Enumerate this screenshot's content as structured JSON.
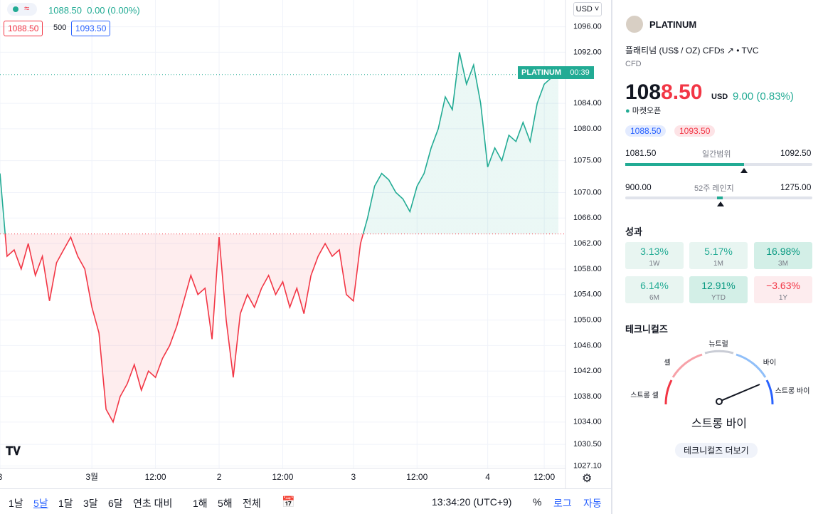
{
  "chart_header": {
    "last": "1088.50",
    "change": "0.00 (0.00%)",
    "bid": "1088.50",
    "spread": "500",
    "ask": "1093.50"
  },
  "currency": "USD",
  "price_badge": {
    "symbol": "PLATINUM",
    "countdown": "00:39"
  },
  "chart_data": {
    "type": "line",
    "categories": [
      "3",
      null,
      null,
      null,
      null,
      null,
      null,
      null,
      null,
      null,
      null,
      null,
      null,
      "3월",
      null,
      null,
      null,
      null,
      null,
      null,
      null,
      null,
      "12:00",
      null,
      null,
      null,
      null,
      null,
      null,
      null,
      null,
      "2",
      null,
      null,
      null,
      null,
      null,
      null,
      null,
      null,
      "12:00",
      null,
      null,
      null,
      null,
      null,
      null,
      null,
      null,
      null,
      "3",
      null,
      null,
      null,
      null,
      null,
      null,
      null,
      null,
      "12:00",
      null,
      null,
      null,
      null,
      null,
      null,
      null,
      null,
      null,
      "4",
      null,
      null,
      null,
      null,
      null,
      null,
      null,
      "12:00",
      null,
      null
    ],
    "values": [
      1073,
      1060,
      1061,
      1058,
      1062,
      1057,
      1060,
      1053,
      1059,
      1061,
      1063,
      1060,
      1058,
      1052,
      1048,
      1036,
      1034,
      1038,
      1040,
      1043,
      1039,
      1042,
      1041,
      1044,
      1046,
      1049,
      1053,
      1057,
      1054,
      1055,
      1047,
      1063,
      1050,
      1041,
      1051,
      1054,
      1052,
      1055,
      1057,
      1054,
      1056,
      1052,
      1055,
      1051,
      1057,
      1060,
      1062,
      1060,
      1061,
      1054,
      1053,
      1062,
      1066,
      1071,
      1073,
      1072,
      1070,
      1069,
      1067,
      1071,
      1073,
      1077,
      1080,
      1085,
      1083,
      1092,
      1087,
      1090,
      1084,
      1074,
      1077,
      1075,
      1079,
      1078,
      1081,
      1078,
      1084,
      1087,
      1088,
      1088.5
    ],
    "baseline": 1063.5,
    "last_price_line": 1088.5,
    "color_up": "#22ab94",
    "color_down": "#f23645",
    "ylim": [
      1026.5,
      1100.2
    ],
    "yticks": [
      {
        "value": 1096,
        "label": "1096.00"
      },
      {
        "value": 1092,
        "label": "1092.00"
      },
      {
        "value": 1084,
        "label": "1084.00"
      },
      {
        "value": 1080,
        "label": "1080.00"
      },
      {
        "value": 1075,
        "label": "1075.00"
      },
      {
        "value": 1070,
        "label": "1070.00"
      },
      {
        "value": 1066,
        "label": "1066.00"
      },
      {
        "value": 1062,
        "label": "1062.00"
      },
      {
        "value": 1058,
        "label": "1058.00"
      },
      {
        "value": 1054,
        "label": "1054.00"
      },
      {
        "value": 1050,
        "label": "1050.00"
      },
      {
        "value": 1046,
        "label": "1046.00"
      },
      {
        "value": 1042,
        "label": "1042.00"
      },
      {
        "value": 1038,
        "label": "1038.00"
      },
      {
        "value": 1034,
        "label": "1034.00"
      },
      {
        "value": 1030.5,
        "label": "1030.50"
      },
      {
        "value": 1027.1,
        "label": "1027.10"
      }
    ],
    "grid": true
  },
  "toolbar": {
    "ranges": [
      "1날",
      "5날",
      "1달",
      "3달",
      "6달",
      "연초 대비",
      "1해",
      "5해",
      "전체"
    ],
    "time": "13:34:20 (UTC+9)",
    "options": [
      "%",
      "로그",
      "자동"
    ]
  },
  "panel": {
    "symbol": "PLATINUM",
    "description": "플래티넘 (US$ / OZ) CFDs",
    "exchange": "TVC",
    "kind": "CFD",
    "price_main": "108",
    "price_tail": "8.50",
    "price_currency": "USD",
    "price_change": "9.00 (0.83%)",
    "market_status": "마켓오픈",
    "bid": "1088.50",
    "ask": "1093.50",
    "day_range": {
      "low": "1081.50",
      "label": "일간범위",
      "high": "1092.50"
    },
    "year_range": {
      "low": "900.00",
      "label": "52주 레인지",
      "high": "1275.00"
    },
    "performance_title": "성과",
    "performance": [
      {
        "value": "3.13%",
        "label": "1W"
      },
      {
        "value": "5.17%",
        "label": "1M"
      },
      {
        "value": "16.98%",
        "label": "3M"
      },
      {
        "value": "6.14%",
        "label": "6M"
      },
      {
        "value": "12.91%",
        "label": "YTD"
      },
      {
        "value": "−3.63%",
        "label": "1Y"
      }
    ],
    "technicals_title": "테크니컬즈",
    "gauge": {
      "strong_sell": "스트롱 셀",
      "sell": "셀",
      "neutral": "뉴트럴",
      "buy": "바이",
      "strong_buy": "스트롱 바이",
      "result": "스트롱 바이"
    },
    "more": "테크니컬즈 더보기"
  }
}
